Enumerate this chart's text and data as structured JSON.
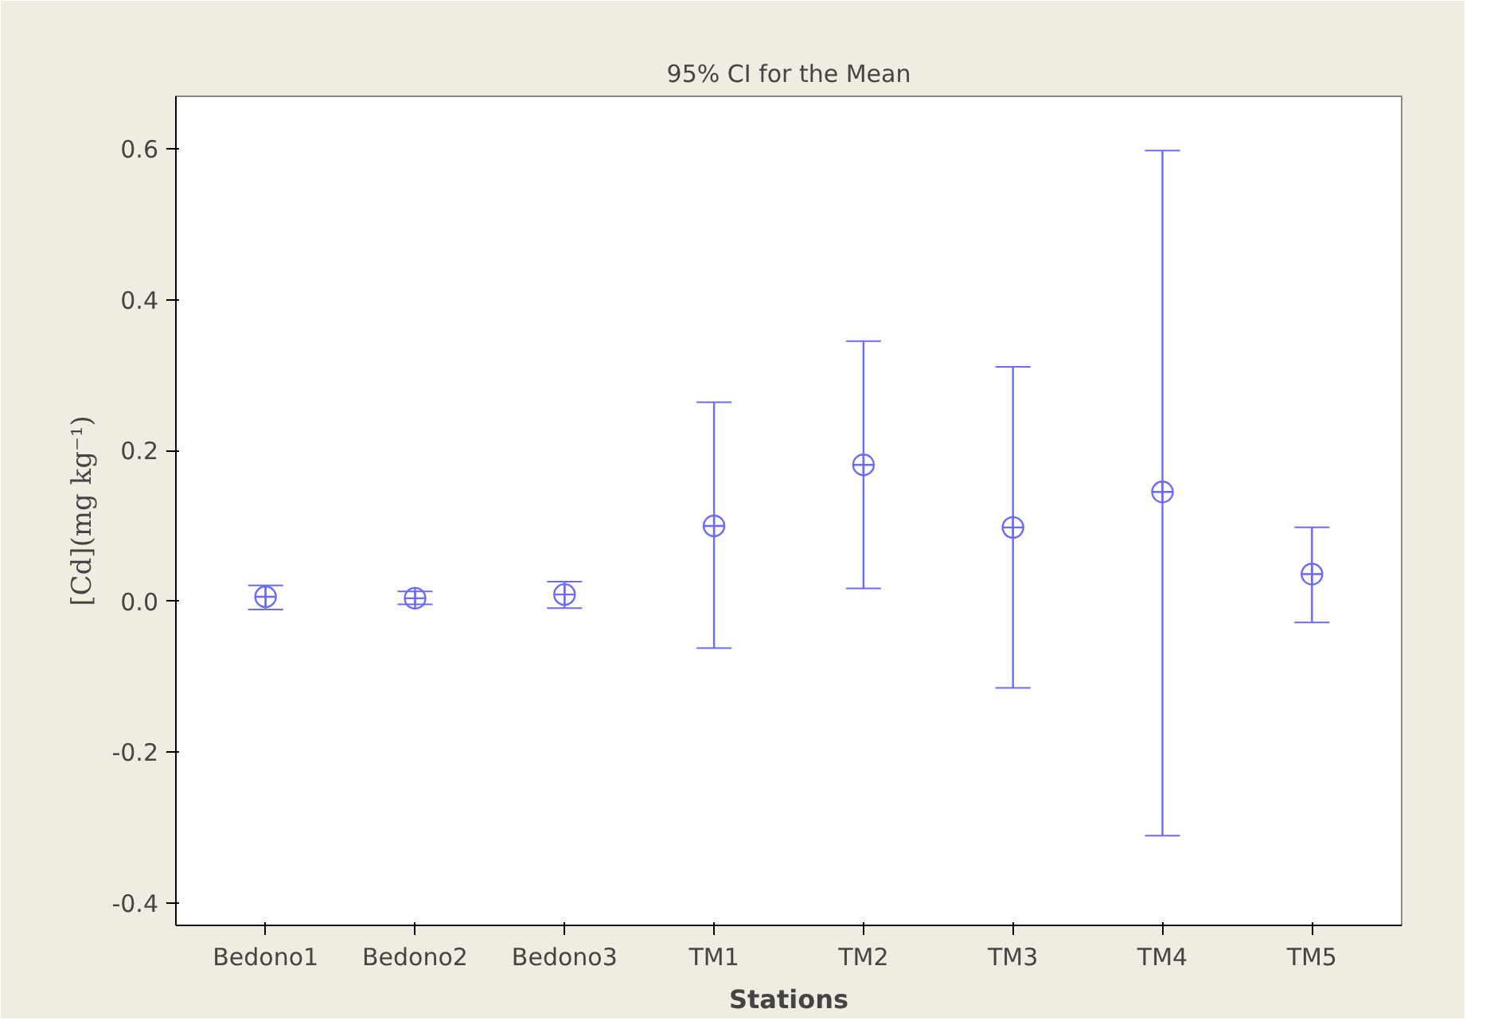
{
  "chart_data": {
    "type": "scatter",
    "title": "95% CI for the Mean",
    "xlabel": "Stations",
    "ylabel": "[Cd](mg kg⁻¹)",
    "categories": [
      "Bedono1",
      "Bedono2",
      "Bedono3",
      "TM1",
      "TM2",
      "TM3",
      "TM4",
      "TM5"
    ],
    "series": [
      {
        "color": "#6a6aff",
        "values": [
          0.006,
          0.004,
          0.009,
          0.1,
          0.181,
          0.098,
          0.145,
          0.036
        ],
        "errors": [
          [
            -0.011,
            0.021
          ],
          [
            -0.004,
            0.013
          ],
          [
            -0.009,
            0.026
          ],
          [
            -0.062,
            0.264
          ],
          [
            0.017,
            0.345
          ],
          [
            -0.115,
            0.311
          ],
          [
            -0.311,
            0.598
          ],
          [
            -0.028,
            0.098
          ]
        ]
      }
    ],
    "ylim": [
      -0.43,
      0.67
    ],
    "yticks": [
      {
        "value": -0.4,
        "label": "-0.4"
      },
      {
        "value": -0.2,
        "label": "-0.2"
      },
      {
        "value": 0,
        "label": "0.0"
      },
      {
        "value": 0.2,
        "label": "0.2"
      },
      {
        "value": 0.4,
        "label": "0.4"
      },
      {
        "value": 0.6,
        "label": "0.6"
      }
    ],
    "marker": "circle",
    "grid": false
  }
}
